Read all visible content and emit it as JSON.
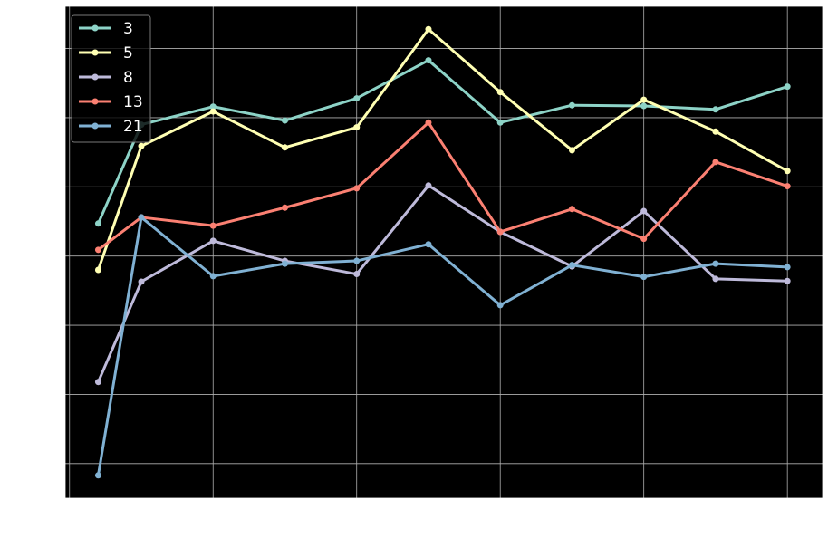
{
  "chart_data": {
    "type": "line",
    "title": "",
    "xlabel": "",
    "ylabel": "",
    "xlim": [
      -0.06,
      10.49
    ],
    "ylim": [
      0.5,
      7.61
    ],
    "grid": true,
    "legend_placement": "upper-left",
    "style": "dark background",
    "xgrid": [
      0,
      2,
      4,
      6,
      8,
      10
    ],
    "ygrid": [
      1,
      2,
      3,
      4,
      5,
      6,
      7
    ],
    "x": [
      0.4,
      1,
      2,
      3,
      4,
      5,
      6,
      7,
      8,
      9,
      10
    ],
    "series": [
      {
        "name": "3",
        "color": "#8dd3c7",
        "values": [
          4.47,
          5.9,
          6.16,
          5.96,
          6.28,
          6.83,
          5.93,
          6.18,
          6.17,
          6.12,
          6.45
        ]
      },
      {
        "name": "5",
        "color": "#ffffb3",
        "values": [
          3.8,
          5.59,
          6.09,
          5.57,
          5.86,
          7.28,
          6.37,
          5.53,
          6.26,
          5.8,
          5.23
        ]
      },
      {
        "name": "8",
        "color": "#bebada",
        "values": [
          2.18,
          3.63,
          4.22,
          3.93,
          3.74,
          5.02,
          4.35,
          3.85,
          4.65,
          3.67,
          3.64
        ]
      },
      {
        "name": "13",
        "color": "#fb8072",
        "values": [
          4.09,
          4.56,
          4.44,
          4.7,
          4.98,
          5.93,
          4.35,
          4.68,
          4.25,
          5.36,
          5.01
        ]
      },
      {
        "name": "21",
        "color": "#80b1d3",
        "values": [
          0.83,
          4.56,
          3.71,
          3.89,
          3.93,
          4.17,
          3.29,
          3.87,
          3.7,
          3.89,
          3.84
        ]
      }
    ]
  }
}
